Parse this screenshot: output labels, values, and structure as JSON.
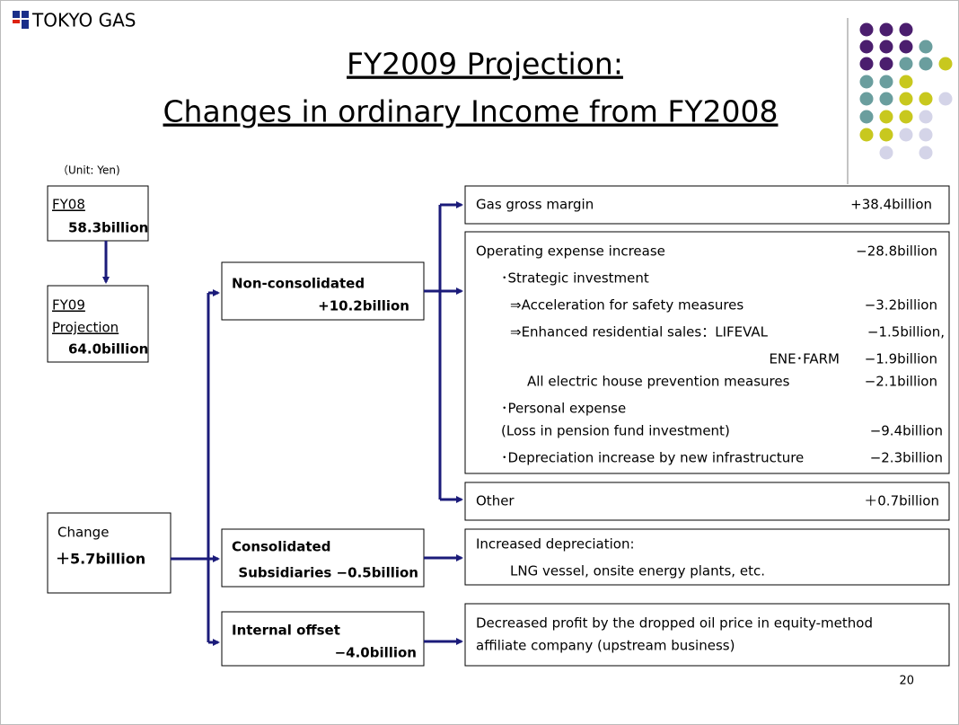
{
  "logo": "TOKYO GAS",
  "title": {
    "line1": "FY2009 Projection:",
    "line2": "Changes in ordinary Income from FY2008"
  },
  "unit": "（Unit: Yen)",
  "left": {
    "fy08": {
      "label": "FY08",
      "value": "58.3billion"
    },
    "fy09": {
      "label1": "FY09",
      "label2": "Projection",
      "value": "64.0billion"
    },
    "change": {
      "label": "Change",
      "value": "＋5.7billion"
    }
  },
  "middle": {
    "non_consolidated": {
      "label": "Non-consolidated",
      "value": "+10.2billion"
    },
    "consolidated": {
      "label": "Consolidated",
      "value": "Subsidiaries  −0.5billion"
    },
    "internal_offset": {
      "label": "Internal offset",
      "value": "−4.0billion"
    }
  },
  "right": {
    "gas_gross_margin": {
      "label": "Gas gross margin",
      "value": "+38.4billion"
    },
    "operating_expense": {
      "rows": [
        {
          "text": "Operating expense increase",
          "value": "−28.8billion"
        },
        {
          "text": "･Strategic investment"
        },
        {
          "text": "⇒Acceleration for safety measures",
          "value": "−3.2billion"
        },
        {
          "text": "⇒Enhanced residential sales：LIFEVAL",
          "value": "−1.5billion,"
        },
        {
          "text": "ENE･FARM",
          "value": "−1.9billion"
        },
        {
          "text": "All electric house prevention measures",
          "value": "−2.1billion"
        },
        {
          "text": "･Personal expense"
        },
        {
          "text": "(Loss in pension fund investment)",
          "value": "−9.4billion"
        },
        {
          "text": "･Depreciation increase by new infrastructure",
          "value": "−2.3billion"
        }
      ]
    },
    "other": {
      "label": "Other",
      "value": "＋0.7billion"
    },
    "depreciation": {
      "line1": "Increased  depreciation:",
      "line2": "LNG vessel, onsite energy plants, etc."
    },
    "decreased_profit": {
      "line1": "Decreased profit by the dropped oil price in equity-method",
      "line2": "affiliate company (upstream business)"
    }
  },
  "page_number": "20"
}
